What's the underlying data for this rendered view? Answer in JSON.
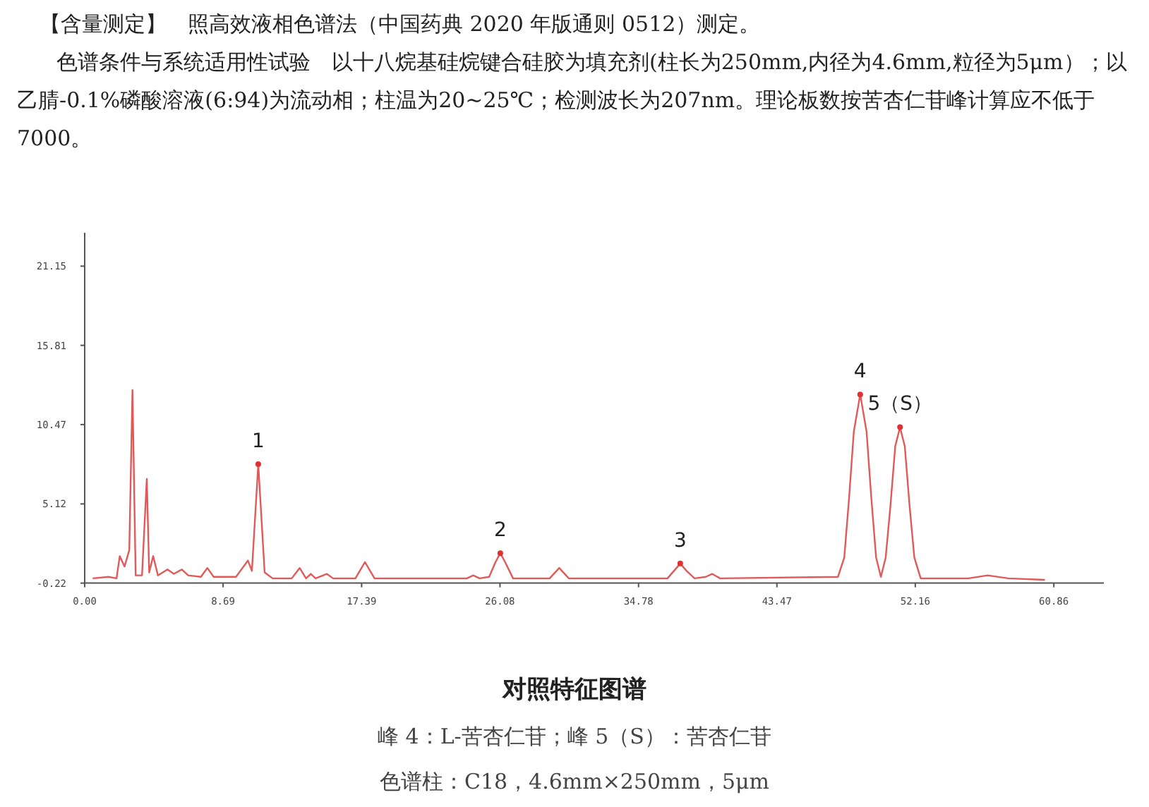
{
  "chart_data": {
    "type": "line",
    "title": "对照特征图谱",
    "annotations": [
      "【含量测定】　照高效液相色谱法（中国药典 2020 年版通则 0512）测定。",
      "色谱条件与系统适用性试验　以十八烷基硅烷键合硅胶为填充剂(柱长为250mm,内径为4.6mm,粒径为5μm）；以乙腈-0.1%磷酸溶液(6:94)为流动相；柱温为20~25℃；检测波长为207nm。理论板数按苦杏仁苷峰计算应不低于 7000。",
      "峰 4：L-苦杏仁苷；峰 5（S）：苦杏仁苷",
      "色谱柱：C18，4.6mm×250mm，5μm",
      {
        "text": "1",
        "x": 10.9,
        "y": 7.8
      },
      {
        "text": "2",
        "x": 26.1,
        "y": 1.8
      },
      {
        "text": "3",
        "x": 37.4,
        "y": 1.1
      },
      {
        "text": "4",
        "x": 48.7,
        "y": 12.5
      },
      {
        "text": "5（S）",
        "x": 51.2,
        "y": 10.3
      }
    ],
    "series": [
      {
        "color": "#e05a5a",
        "marker": "none",
        "x": [
          0.5,
          1.5,
          2.0,
          2.2,
          2.5,
          2.8,
          3.0,
          3.2,
          3.6,
          3.9,
          4.05,
          4.3,
          4.6,
          5.2,
          5.6,
          6.1,
          6.5,
          7.3,
          7.7,
          8.1,
          9.5,
          10.25,
          10.5,
          10.9,
          11.3,
          11.8,
          13.0,
          13.5,
          13.9,
          14.2,
          14.5,
          15.2,
          15.6,
          17.0,
          17.6,
          18.2,
          24.0,
          24.4,
          24.8,
          25.4,
          25.8,
          26.1,
          26.4,
          26.9,
          29.2,
          29.8,
          30.4,
          36.6,
          37.0,
          37.4,
          37.8,
          38.3,
          39.0,
          39.4,
          39.9,
          47.3,
          47.7,
          48.0,
          48.3,
          48.7,
          49.1,
          49.4,
          49.7,
          50.0,
          50.3,
          50.6,
          50.9,
          51.2,
          51.5,
          51.8,
          52.1,
          52.5,
          55.5,
          56.7,
          58.0,
          60.3
        ],
        "values": [
          0.1,
          0.2,
          0.1,
          1.6,
          0.9,
          2.0,
          12.8,
          0.3,
          0.3,
          6.8,
          0.5,
          1.6,
          0.3,
          0.7,
          0.4,
          0.7,
          0.3,
          0.2,
          0.8,
          0.2,
          0.2,
          1.3,
          0.6,
          7.8,
          0.5,
          0.1,
          0.1,
          0.8,
          0.1,
          0.4,
          0.1,
          0.4,
          0.1,
          0.1,
          1.2,
          0.1,
          0.1,
          0.3,
          0.1,
          0.2,
          1.2,
          1.8,
          1.2,
          0.1,
          0.1,
          0.8,
          0.1,
          0.1,
          0.6,
          1.1,
          0.6,
          0.1,
          0.2,
          0.4,
          0.1,
          0.2,
          1.5,
          5.5,
          10.0,
          12.5,
          10.0,
          5.5,
          1.5,
          0.2,
          1.5,
          5.0,
          9.0,
          10.3,
          9.0,
          5.0,
          1.5,
          0.1,
          0.1,
          0.3,
          0.1,
          0.0
        ]
      },
      {
        "type": "scatter",
        "color": "#e03030",
        "marker": "circle",
        "x": [
          10.9,
          26.1,
          37.4,
          48.7,
          51.2
        ],
        "values": [
          7.8,
          1.8,
          1.1,
          12.5,
          10.3
        ]
      }
    ],
    "xlim": [
      0,
      64
    ],
    "ylim": [
      -0.22,
      23.4
    ],
    "xticks": [
      {
        "value": 0,
        "label": "0.00"
      },
      8.69,
      17.39,
      26.08,
      34.78,
      43.47,
      52.16,
      60.86
    ],
    "yticks": [
      -0.22,
      5.12,
      10.47,
      15.81,
      21.15
    ],
    "grid": false
  }
}
